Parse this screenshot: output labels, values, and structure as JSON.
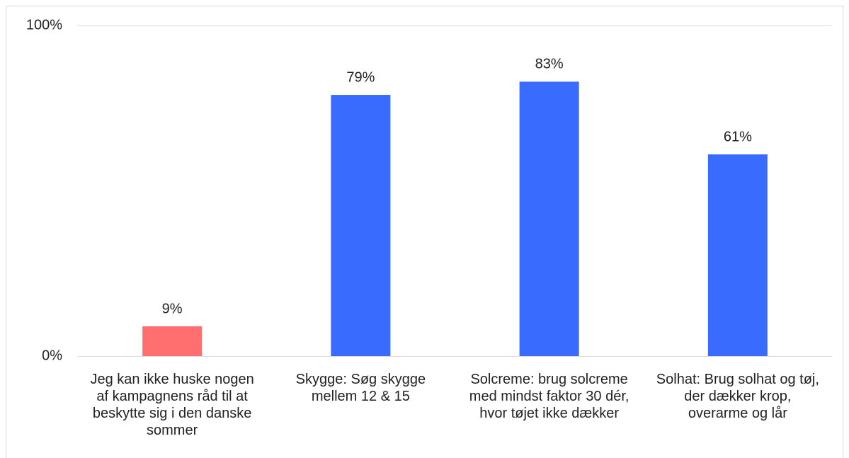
{
  "chart_data": {
    "type": "bar",
    "categories": [
      "Jeg kan ikke huske nogen af kampagnens råd til at beskytte sig i den danske sommer",
      "Skygge: Søg skygge mellem 12 & 15",
      "Solcreme: brug solcreme med mindst faktor 30 dér, hvor tøjet ikke dækker",
      "Solhat: Brug solhat og tøj, der dækker krop, overarme og lår"
    ],
    "values": [
      9,
      79,
      83,
      61
    ],
    "value_labels": [
      "9%",
      "79%",
      "83%",
      "61%"
    ],
    "colors": [
      "#ff6f6f",
      "#3a6bff",
      "#3a6bff",
      "#3a6bff"
    ],
    "ylim": [
      0,
      100
    ],
    "yticks": [
      {
        "value": 0,
        "label": "0%"
      },
      {
        "value": 100,
        "label": "100%"
      }
    ],
    "grid": true
  }
}
